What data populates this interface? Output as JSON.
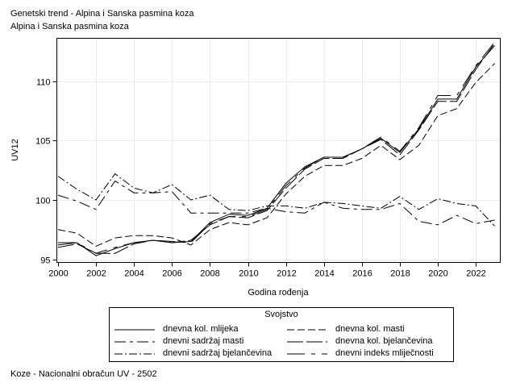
{
  "header": {
    "title_line1": "Genetski trend - Alpina i Sanska pasmina koza",
    "title_line2": "Alpina i Sanska pasmina koza"
  },
  "footnote": "Koze - Nacionalni obračun UV - 2502",
  "legend": {
    "title": "Svojstvo",
    "items": [
      {
        "label": "dnevna kol. mlijeka",
        "dash": ""
      },
      {
        "label": "dnevna kol. masti",
        "dash": "9,4"
      },
      {
        "label": "dnevni sadržaj masti",
        "dash": "14,5,4,5"
      },
      {
        "label": "dnevna kol. bjelančevina",
        "dash": "20,4"
      },
      {
        "label": "dnevni sadržaj bjelančevina",
        "dash": "10,3,2,3"
      },
      {
        "label": "dnevni indeks mliječnosti",
        "dash": "22,8,5,8"
      }
    ]
  },
  "chart_data": {
    "type": "line",
    "title": "Genetski trend - Alpina i Sanska pasmina koza",
    "subtitle": "Alpina i Sanska pasmina koza",
    "xlabel": "Godina rođenja",
    "ylabel": "UV12",
    "xlim": [
      2000,
      2023
    ],
    "ylim": [
      95,
      113
    ],
    "x_ticks": [
      2000,
      2002,
      2004,
      2006,
      2008,
      2010,
      2012,
      2014,
      2016,
      2018,
      2020,
      2022
    ],
    "y_ticks": [
      95,
      100,
      105,
      110
    ],
    "grid": true,
    "legend_position": "bottom",
    "legend_title": "Svojstvo",
    "x": [
      2000,
      2001,
      2002,
      2003,
      2004,
      2005,
      2006,
      2007,
      2008,
      2009,
      2010,
      2011,
      2012,
      2013,
      2014,
      2015,
      2016,
      2017,
      2018,
      2019,
      2020,
      2021,
      2022,
      2023
    ],
    "series": [
      {
        "name": "dnevna kol. mlijeka",
        "values": [
          96.2,
          96.4,
          95.3,
          95.9,
          96.4,
          96.6,
          96.4,
          96.5,
          98.1,
          98.8,
          98.7,
          99.3,
          101.4,
          102.8,
          103.6,
          103.6,
          104.3,
          105.2,
          104.0,
          106.0,
          108.5,
          108.5,
          111.2,
          113.0
        ]
      },
      {
        "name": "dnevna kol. masti",
        "values": [
          97.5,
          97.2,
          96.1,
          96.8,
          97.0,
          97.0,
          96.8,
          96.2,
          97.5,
          98.1,
          97.9,
          98.5,
          100.5,
          102.0,
          102.9,
          102.9,
          103.5,
          104.6,
          103.4,
          104.6,
          107.1,
          107.7,
          109.9,
          111.5
        ]
      },
      {
        "name": "dnevni sadržaj masti",
        "values": [
          100.4,
          99.9,
          99.2,
          101.6,
          100.6,
          100.6,
          100.7,
          98.9,
          98.9,
          98.9,
          98.9,
          99.3,
          99.0,
          98.9,
          99.8,
          99.3,
          99.2,
          99.2,
          99.7,
          98.2,
          97.9,
          98.7,
          98.0,
          98.3
        ]
      },
      {
        "name": "dnevna kol. bjelančevina",
        "values": [
          96.0,
          96.3,
          95.5,
          95.5,
          96.3,
          96.6,
          96.4,
          96.6,
          97.9,
          98.6,
          98.5,
          99.1,
          101.0,
          102.6,
          103.5,
          103.5,
          104.3,
          105.1,
          103.8,
          105.9,
          108.3,
          108.3,
          111.0,
          113.2
        ]
      },
      {
        "name": "dnevni sadržaj bjelančevina",
        "values": [
          102.0,
          100.9,
          100.0,
          102.2,
          101.0,
          100.6,
          101.3,
          100.0,
          100.4,
          99.2,
          99.1,
          99.5,
          99.5,
          99.3,
          99.8,
          99.7,
          99.5,
          99.3,
          100.3,
          99.2,
          100.1,
          99.7,
          99.5,
          97.8
        ]
      },
      {
        "name": "dnevni indeks mliječnosti",
        "values": [
          96.4,
          96.4,
          95.5,
          96.0,
          96.4,
          96.6,
          96.5,
          96.4,
          98.0,
          98.6,
          98.6,
          99.2,
          101.2,
          102.7,
          103.6,
          103.6,
          104.3,
          105.3,
          104.1,
          106.1,
          108.8,
          108.8,
          111.3,
          113.3
        ]
      }
    ]
  }
}
